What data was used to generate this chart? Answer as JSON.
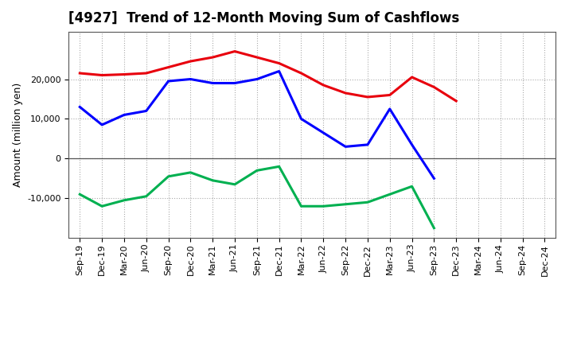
{
  "title": "[4927]  Trend of 12-Month Moving Sum of Cashflows",
  "ylabel": "Amount (million yen)",
  "x_labels": [
    "Sep-19",
    "Dec-19",
    "Mar-20",
    "Jun-20",
    "Sep-20",
    "Dec-20",
    "Mar-21",
    "Jun-21",
    "Sep-21",
    "Dec-21",
    "Mar-22",
    "Jun-22",
    "Sep-22",
    "Dec-22",
    "Mar-23",
    "Jun-23",
    "Sep-23",
    "Dec-23",
    "Mar-24",
    "Jun-24",
    "Sep-24",
    "Dec-24"
  ],
  "operating": [
    21500,
    21000,
    21200,
    21500,
    23000,
    24500,
    25500,
    27000,
    25500,
    24000,
    21500,
    18500,
    16500,
    15500,
    16000,
    20500,
    18000,
    14500,
    null,
    null,
    null,
    null
  ],
  "investing": [
    -9000,
    -12000,
    -10500,
    -9500,
    -4500,
    -3500,
    -5500,
    -6500,
    -3000,
    -2000,
    -12000,
    -12000,
    -11500,
    -11000,
    -9000,
    -7000,
    -17500,
    null,
    null,
    null,
    null,
    null
  ],
  "free": [
    13000,
    8500,
    11000,
    12000,
    19500,
    20000,
    19000,
    19000,
    20000,
    22000,
    10000,
    6500,
    3000,
    3500,
    12500,
    3500,
    -5000,
    null,
    null,
    null,
    null,
    null
  ],
  "operating_color": "#e8000d",
  "investing_color": "#00b050",
  "free_color": "#0000ff",
  "ylim": [
    -20000,
    32000
  ],
  "yticks": [
    -10000,
    0,
    10000,
    20000
  ],
  "bg_color": "#ffffff",
  "grid_color": "#aaaaaa",
  "linewidth": 2.2,
  "title_fontsize": 12,
  "ylabel_fontsize": 9,
  "tick_fontsize": 8,
  "legend_fontsize": 9
}
